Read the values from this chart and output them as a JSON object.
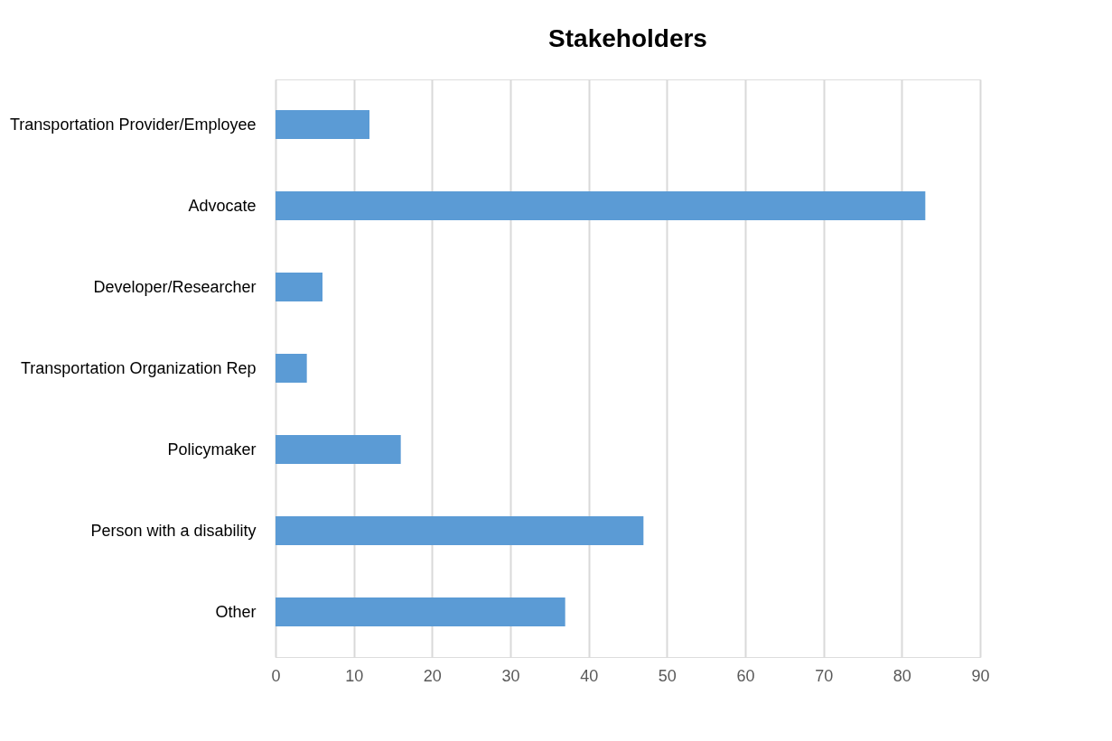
{
  "chart_data": {
    "type": "bar",
    "title": "Stakeholders",
    "orientation": "horizontal",
    "categories": [
      "Transportation Provider/Employee",
      "Advocate",
      "Developer/Researcher",
      "Transportation Organization Rep",
      "Policymaker",
      "Person with a disability",
      "Other"
    ],
    "values": [
      12,
      83,
      6,
      4,
      16,
      47,
      37
    ],
    "color": "#5b9bd5",
    "xlim": [
      0,
      90
    ],
    "xticks": [
      0,
      10,
      20,
      30,
      40,
      50,
      60,
      70,
      80,
      90
    ],
    "grid": "x"
  }
}
